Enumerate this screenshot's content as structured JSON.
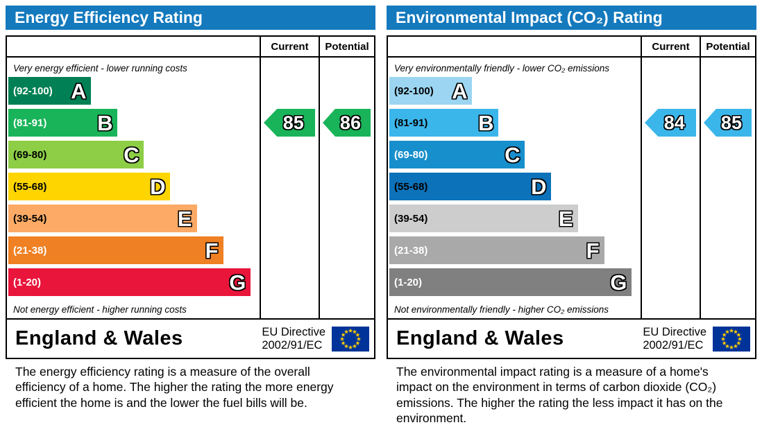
{
  "colors": {
    "header_bg": "#1479bd",
    "table_border": "#000000",
    "eu_flag_bg": "#003399",
    "eu_flag_star": "#ffcc00"
  },
  "panels": [
    {
      "title": "Energy Efficiency Rating",
      "columns": {
        "current": "Current",
        "potential": "Potential"
      },
      "top_caption": "Very energy efficient - lower running costs",
      "bottom_caption": "Not energy efficient - higher running costs",
      "bands": [
        {
          "grade": "A",
          "range": "(92-100)",
          "color": "#008054",
          "label_color": "#ffffff",
          "width_pct": 33
        },
        {
          "grade": "B",
          "range": "(81-91)",
          "color": "#19b459",
          "label_color": "#ffffff",
          "width_pct": 43.5
        },
        {
          "grade": "C",
          "range": "(69-80)",
          "color": "#8dce46",
          "label_color": "#000000",
          "width_pct": 54
        },
        {
          "grade": "D",
          "range": "(55-68)",
          "color": "#ffd500",
          "label_color": "#000000",
          "width_pct": 64.5
        },
        {
          "grade": "E",
          "range": "(39-54)",
          "color": "#fcaa65",
          "label_color": "#000000",
          "width_pct": 75
        },
        {
          "grade": "F",
          "range": "(21-38)",
          "color": "#ef8023",
          "label_color": "#ffffff",
          "width_pct": 85.5
        },
        {
          "grade": "G",
          "range": "(1-20)",
          "color": "#e9153b",
          "label_color": "#ffffff",
          "width_pct": 96.5
        }
      ],
      "current": {
        "value": "85",
        "band_index": 1,
        "color": "#19b459"
      },
      "potential": {
        "value": "86",
        "band_index": 1,
        "color": "#19b459"
      },
      "footer": {
        "region": "England & Wales",
        "directive_line1": "EU Directive",
        "directive_line2": "2002/91/EC"
      },
      "description": "The energy efficiency rating is a measure of the overall efficiency of a home. The higher the rating the more energy efficient the home is and the lower the fuel bills will be."
    },
    {
      "title": "Environmental Impact (CO₂) Rating",
      "columns": {
        "current": "Current",
        "potential": "Potential"
      },
      "top_caption": "Very environmentally friendly - lower CO₂ emissions",
      "bottom_caption": "Not environmentally friendly - higher CO₂ emissions",
      "bands": [
        {
          "grade": "A",
          "range": "(92-100)",
          "color": "#9bd5f1",
          "label_color": "#000000",
          "width_pct": 33
        },
        {
          "grade": "B",
          "range": "(81-91)",
          "color": "#3bb6ea",
          "label_color": "#000000",
          "width_pct": 43.5
        },
        {
          "grade": "C",
          "range": "(69-80)",
          "color": "#178fcc",
          "label_color": "#ffffff",
          "width_pct": 54
        },
        {
          "grade": "D",
          "range": "(55-68)",
          "color": "#0c72ba",
          "label_color": "#000000",
          "width_pct": 64.5
        },
        {
          "grade": "E",
          "range": "(39-54)",
          "color": "#cdcdcd",
          "label_color": "#000000",
          "width_pct": 75
        },
        {
          "grade": "F",
          "range": "(21-38)",
          "color": "#a9a9a9",
          "label_color": "#ffffff",
          "width_pct": 85.5
        },
        {
          "grade": "G",
          "range": "(1-20)",
          "color": "#808080",
          "label_color": "#ffffff",
          "width_pct": 96.5
        }
      ],
      "current": {
        "value": "84",
        "band_index": 1,
        "color": "#3bb6ea"
      },
      "potential": {
        "value": "85",
        "band_index": 1,
        "color": "#3bb6ea"
      },
      "footer": {
        "region": "England & Wales",
        "directive_line1": "EU Directive",
        "directive_line2": "2002/91/EC"
      },
      "description": "The environmental impact rating is a measure of a home's impact on the environment in terms of carbon dioxide (CO₂) emissions. The higher the rating the less impact it has on the environment."
    }
  ],
  "chart_data": [
    {
      "type": "bar",
      "orientation": "horizontal",
      "title": "Energy Efficiency Rating",
      "categories": [
        "A",
        "B",
        "C",
        "D",
        "E",
        "F",
        "G"
      ],
      "band_ranges": [
        "92-100",
        "81-91",
        "69-80",
        "55-68",
        "39-54",
        "21-38",
        "1-20"
      ],
      "bar_lengths_relative": [
        0.33,
        0.435,
        0.54,
        0.645,
        0.75,
        0.855,
        0.965
      ],
      "bar_colors": [
        "#008054",
        "#19b459",
        "#8dce46",
        "#ffd500",
        "#fcaa65",
        "#ef8023",
        "#e9153b"
      ],
      "current": 85,
      "potential": 86,
      "current_band": "B",
      "potential_band": "B",
      "column_headers": [
        "Current",
        "Potential"
      ],
      "annotations": [
        "Very energy efficient - lower running costs",
        "Not energy efficient - higher running costs"
      ],
      "footer": "England & Wales, EU Directive 2002/91/EC"
    },
    {
      "type": "bar",
      "orientation": "horizontal",
      "title": "Environmental Impact (CO₂) Rating",
      "categories": [
        "A",
        "B",
        "C",
        "D",
        "E",
        "F",
        "G"
      ],
      "band_ranges": [
        "92-100",
        "81-91",
        "69-80",
        "55-68",
        "39-54",
        "21-38",
        "1-20"
      ],
      "bar_lengths_relative": [
        0.33,
        0.435,
        0.54,
        0.645,
        0.75,
        0.855,
        0.965
      ],
      "bar_colors": [
        "#9bd5f1",
        "#3bb6ea",
        "#178fcc",
        "#0c72ba",
        "#cdcdcd",
        "#a9a9a9",
        "#808080"
      ],
      "current": 84,
      "potential": 85,
      "current_band": "B",
      "potential_band": "B",
      "column_headers": [
        "Current",
        "Potential"
      ],
      "annotations": [
        "Very environmentally friendly - lower CO₂ emissions",
        "Not environmentally friendly - higher CO₂ emissions"
      ],
      "footer": "England & Wales, EU Directive 2002/91/EC"
    }
  ]
}
